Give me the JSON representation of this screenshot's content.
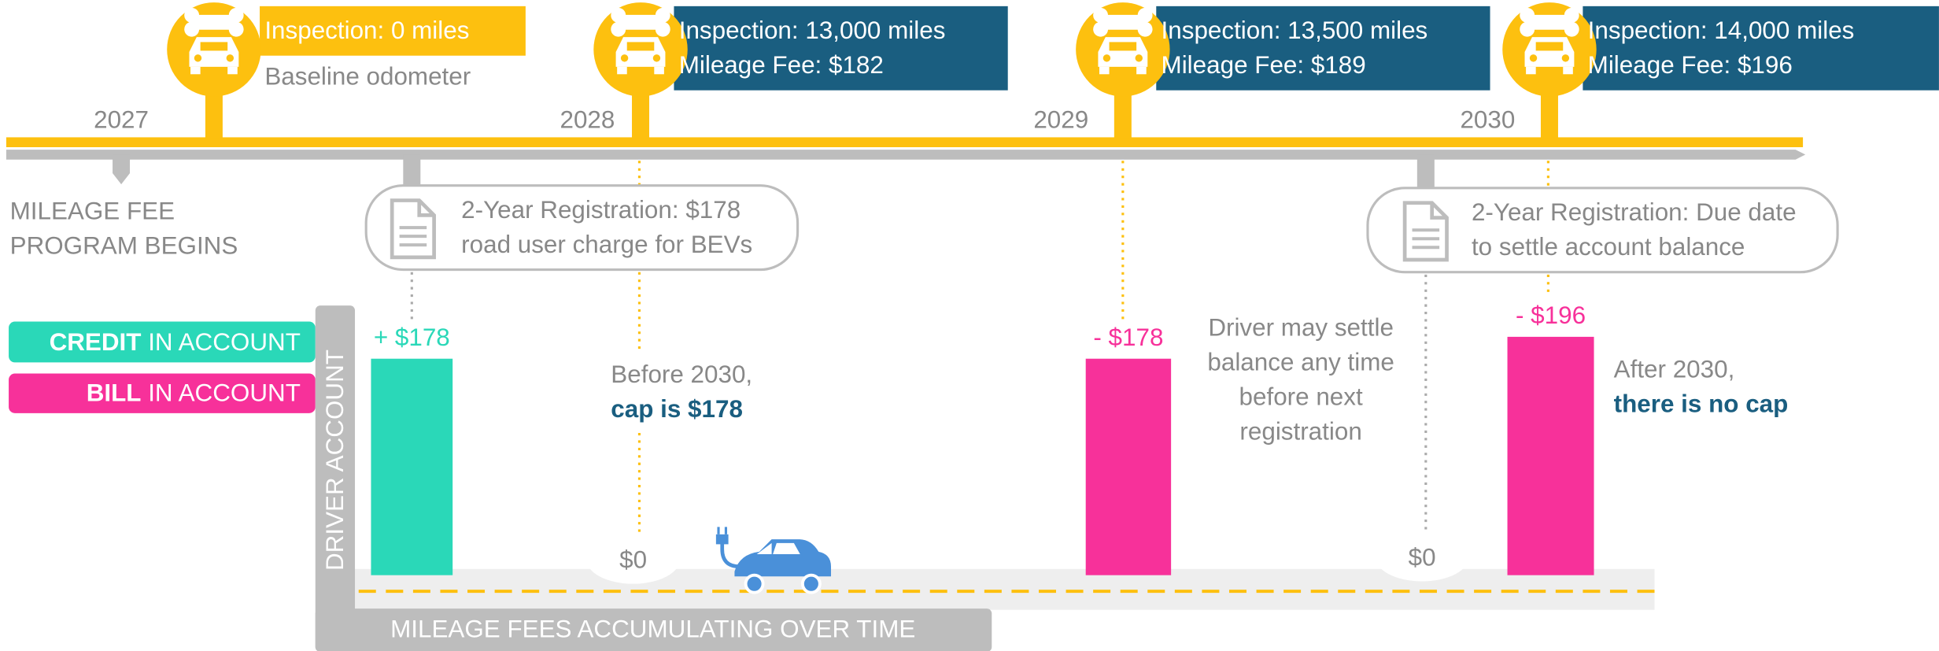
{
  "timeline": {
    "years": [
      "2027",
      "2028",
      "2029",
      "2030"
    ],
    "start_note": [
      "MILEAGE FEE",
      "PROGRAM BEGINS"
    ]
  },
  "inspections": [
    {
      "title": "Inspection: 0 miles",
      "note": "Baseline odometer"
    },
    {
      "title": "Inspection: 13,000 miles",
      "fee": "Mileage Fee: $182"
    },
    {
      "title": "Inspection: 13,500 miles",
      "fee": "Mileage Fee: $189"
    },
    {
      "title": "Inspection: 14,000 miles",
      "fee": "Mileage Fee: $196"
    }
  ],
  "registrations": [
    {
      "lines": [
        "2-Year Registration: $178",
        "road user charge for BEVs"
      ]
    },
    {
      "lines": [
        "2-Year Registration: Due date",
        "to settle account balance"
      ]
    }
  ],
  "legend": {
    "credit": {
      "strong": "CREDIT",
      "rest": "IN ACCOUNT"
    },
    "bill": {
      "strong": "BILL",
      "rest": "IN ACCOUNT"
    }
  },
  "axis": {
    "y_label": "DRIVER ACCOUNT",
    "x_label": "MILEAGE FEES ACCUMULATING OVER TIME"
  },
  "bars": [
    {
      "value": 178,
      "label": "+ $178"
    },
    {
      "value": -178,
      "label": "- $178"
    },
    {
      "value": -196,
      "label": "- $196"
    }
  ],
  "zeros": [
    "$0",
    "$0"
  ],
  "notes": [
    {
      "lines": [
        "Before 2030,"
      ],
      "strong": "cap is $178"
    },
    {
      "lines": [
        "Driver may settle",
        "balance any time",
        "before next",
        "registration"
      ]
    },
    {
      "lines": [
        "After 2030,"
      ],
      "strong": "there is no cap"
    }
  ]
}
